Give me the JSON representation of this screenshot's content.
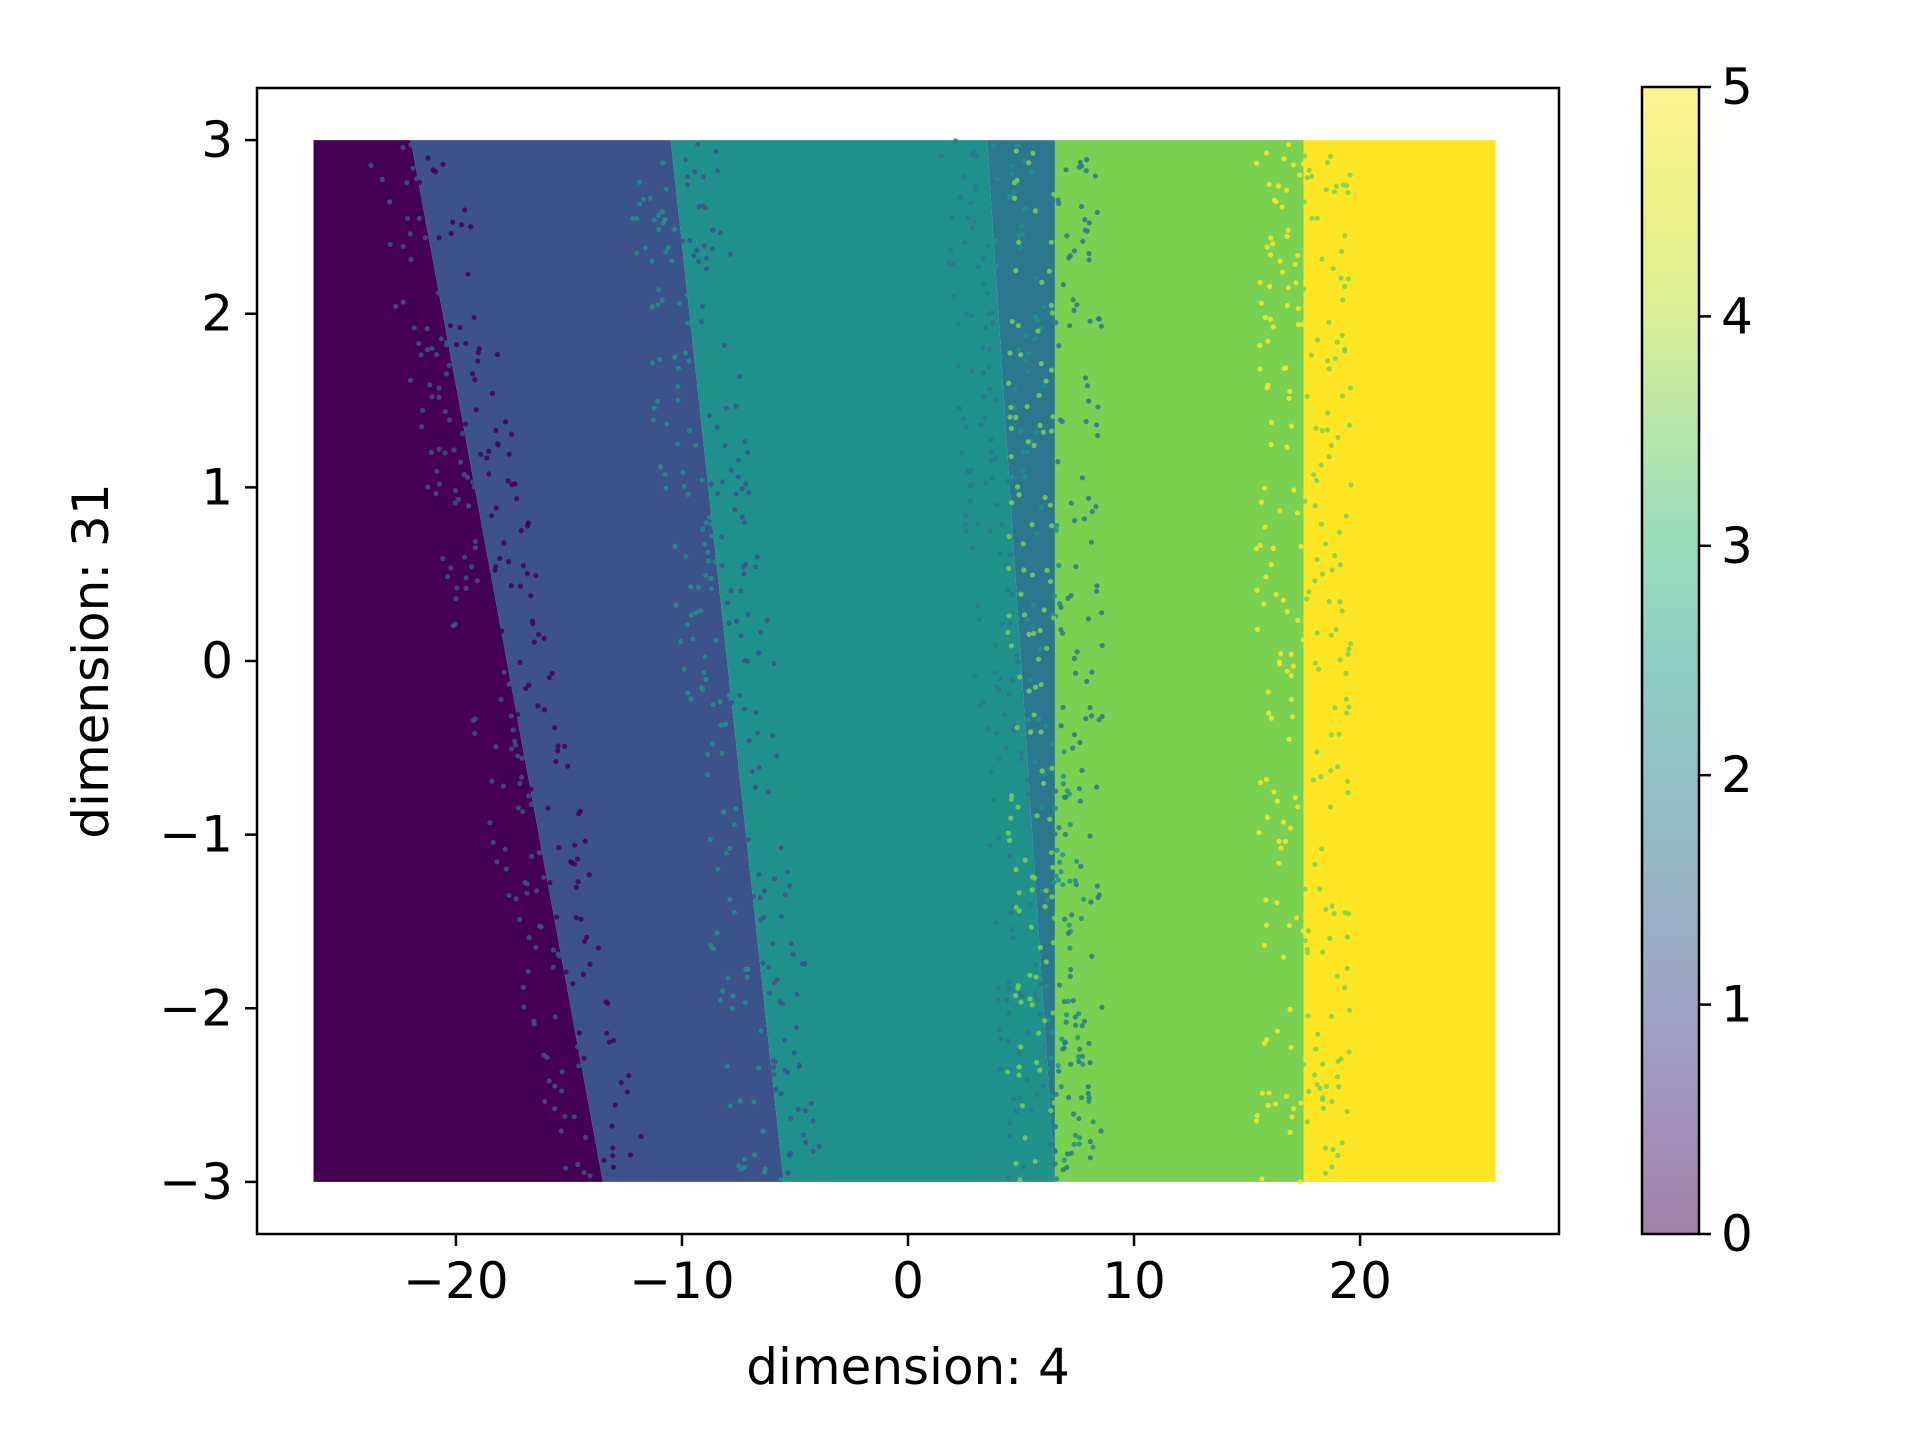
{
  "chart_data": {
    "type": "scatter",
    "title": "",
    "xlabel": "dimension: 4",
    "ylabel": "dimension: 31",
    "xlim": [
      -28.8,
      28.8
    ],
    "ylim": [
      -3.3,
      3.3
    ],
    "xticks": [
      -20,
      -10,
      0,
      10,
      20
    ],
    "xtick_labels": [
      "−20",
      "−10",
      "0",
      "10",
      "20"
    ],
    "yticks": [
      -3,
      -2,
      -1,
      0,
      1,
      2,
      3
    ],
    "ytick_labels": [
      "−3",
      "−2",
      "−1",
      "0",
      "1",
      "2",
      "3"
    ],
    "x_range": [
      -26.3,
      26.0
    ],
    "y_range": [
      -3.0,
      3.0
    ],
    "grid": false,
    "point_alpha": 0.5,
    "classes": [
      0,
      1,
      2,
      3,
      4,
      5
    ],
    "class_colors": [
      "#440154",
      "#3b528b",
      "#21918c",
      "#2a788e",
      "#7ad151",
      "#fde725"
    ],
    "class_boundaries": [
      {
        "between": [
          0,
          1
        ],
        "x_at_y_top": -22.0,
        "x_at_y_bottom": -13.5
      },
      {
        "between": [
          1,
          2
        ],
        "x_at_y_top": -10.5,
        "x_at_y_bottom": -5.5
      },
      {
        "between": [
          2,
          3
        ],
        "x_at_y_top": 3.5,
        "x_at_y_bottom": 6.5
      },
      {
        "between": [
          3,
          4
        ],
        "x_at_y_top": 6.5,
        "x_at_y_bottom": 6.5
      },
      {
        "between": [
          4,
          5
        ],
        "x_at_y_top": 17.5,
        "x_at_y_bottom": 17.5
      }
    ],
    "colorbar": {
      "min": 0,
      "max": 5,
      "ticks": [
        0,
        1,
        2,
        3,
        4,
        5
      ],
      "tick_labels": [
        "0",
        "1",
        "2",
        "3",
        "4",
        "5"
      ],
      "colormap": "viridis",
      "alpha": 0.5
    }
  }
}
